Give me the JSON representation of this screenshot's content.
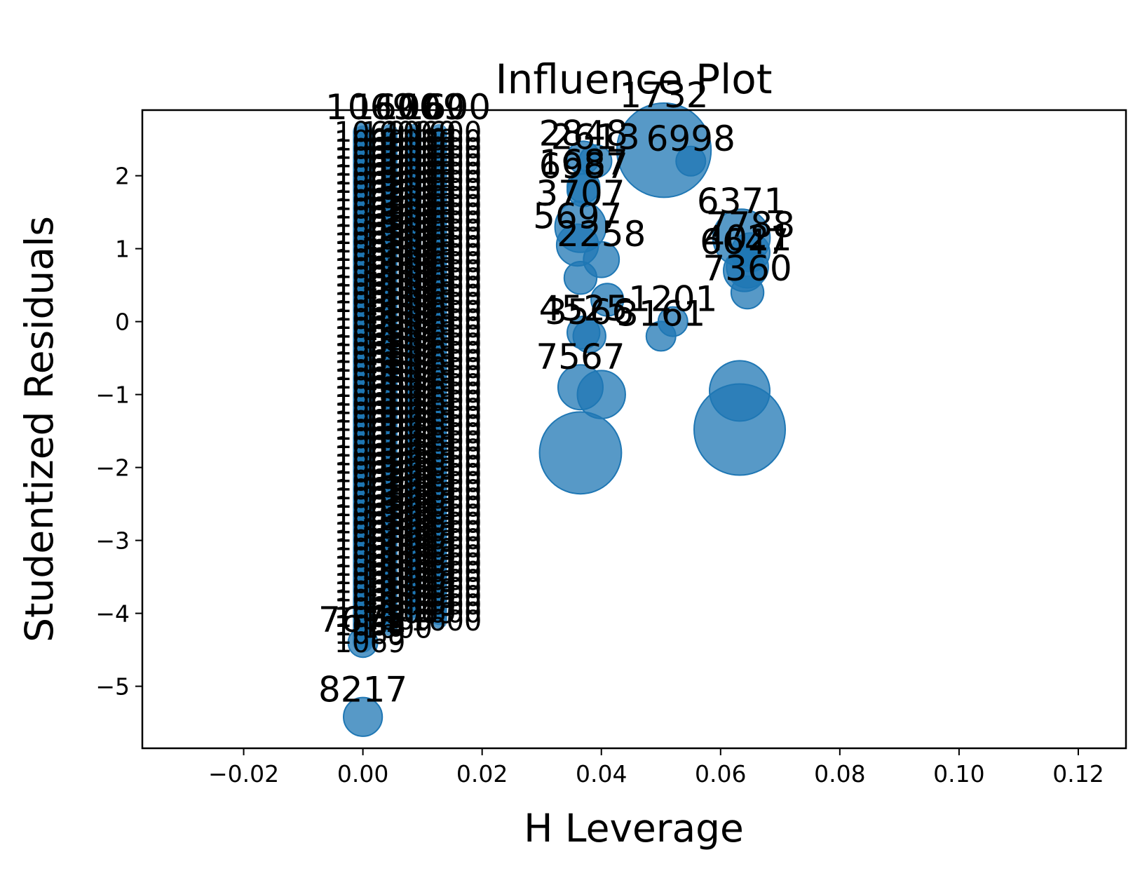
{
  "chart_data": {
    "type": "scatter",
    "title": "Influence Plot",
    "xlabel": "H Leverage",
    "ylabel": "Studentized Residuals",
    "xlim": [
      -0.037,
      0.128
    ],
    "ylim": [
      -5.85,
      2.9
    ],
    "xticks": [
      -0.02,
      0.0,
      0.02,
      0.04,
      0.06,
      0.08,
      0.1,
      0.12
    ],
    "xtick_labels": [
      "−0.02",
      "0.00",
      "0.02",
      "0.04",
      "0.06",
      "0.08",
      "0.10",
      "0.12"
    ],
    "yticks": [
      -5,
      -4,
      -3,
      -2,
      -1,
      0,
      1,
      2
    ],
    "ytick_labels": [
      "−5",
      "−4",
      "−3",
      "−2",
      "−1",
      "0",
      "1",
      "2"
    ],
    "grid": false,
    "marker_color": "#1f77b4",
    "marker_alpha": 0.75,
    "points": [
      {
        "label": "1732",
        "x": 0.0505,
        "y": 2.35,
        "size": 2.6
      },
      {
        "label": "2848",
        "x": 0.037,
        "y": 2.25,
        "size": 0.6
      },
      {
        "label": "2613",
        "x": 0.039,
        "y": 2.2,
        "size": 0.6
      },
      {
        "label": "6998",
        "x": 0.055,
        "y": 2.2,
        "size": 0.5
      },
      {
        "label": "1687",
        "x": 0.037,
        "y": 1.85,
        "size": 0.6
      },
      {
        "label": "6987",
        "x": 0.037,
        "y": 1.8,
        "size": 0.6
      },
      {
        "label": "6371",
        "x": 0.0635,
        "y": 1.15,
        "size": 1.4
      },
      {
        "label": "3707",
        "x": 0.0365,
        "y": 1.3,
        "size": 1.2
      },
      {
        "label": "7788",
        "x": 0.065,
        "y": 0.95,
        "size": 0.8
      },
      {
        "label": "5697",
        "x": 0.036,
        "y": 1.05,
        "size": 0.9
      },
      {
        "label": "2258",
        "x": 0.04,
        "y": 0.85,
        "size": 0.7
      },
      {
        "label": "4021",
        "x": 0.0645,
        "y": 0.75,
        "size": 0.9
      },
      {
        "label": "6647",
        "x": 0.064,
        "y": 0.7,
        "size": 0.9
      },
      {
        "label": "7360",
        "x": 0.0645,
        "y": 0.4,
        "size": 0.6
      },
      {
        "label": "1201",
        "x": 0.052,
        "y": 0.0,
        "size": 0.5
      },
      {
        "label": "3161",
        "x": 0.05,
        "y": -0.2,
        "size": 0.5
      },
      {
        "label": "4525",
        "x": 0.037,
        "y": -0.15,
        "size": 0.6
      },
      {
        "label": "3566",
        "x": 0.038,
        "y": -0.2,
        "size": 0.6
      },
      {
        "label": "7567",
        "x": 0.0365,
        "y": -0.9,
        "size": 1.0
      },
      {
        "label": "",
        "x": 0.04,
        "y": -1.0,
        "size": 1.1
      },
      {
        "label": "",
        "x": 0.0365,
        "y": -1.8,
        "size": 2.2
      },
      {
        "label": "",
        "x": 0.0632,
        "y": -0.95,
        "size": 1.5
      },
      {
        "label": "",
        "x": 0.0632,
        "y": -1.48,
        "size": 2.5
      },
      {
        "label": "",
        "x": 0.0365,
        "y": 0.6,
        "size": 0.6
      },
      {
        "label": "",
        "x": 0.041,
        "y": 0.3,
        "size": 0.6
      },
      {
        "label": "7672",
        "x": 0.0,
        "y": -4.4,
        "size": 0.5
      },
      {
        "label": "8217",
        "x": 0.0,
        "y": -5.42,
        "size": 0.8
      }
    ],
    "band_columns": [
      {
        "label_top": "1069",
        "x": 0.0,
        "y_top": 2.6,
        "y_bottom": -4.4
      },
      {
        "label_top": "1600",
        "x": 0.0045,
        "y_top": 2.6,
        "y_bottom": -4.2
      },
      {
        "label_top": "1069",
        "x": 0.0085,
        "y_top": 2.6,
        "y_bottom": -4.0
      },
      {
        "label_top": "1600",
        "x": 0.0128,
        "y_top": 2.6,
        "y_bottom": -4.1
      }
    ],
    "band_labels_mid": [
      "2299",
      "2299",
      "2299",
      "2299"
    ],
    "band_labels_low": [
      "7640",
      "7646",
      "9646",
      "7646"
    ]
  }
}
